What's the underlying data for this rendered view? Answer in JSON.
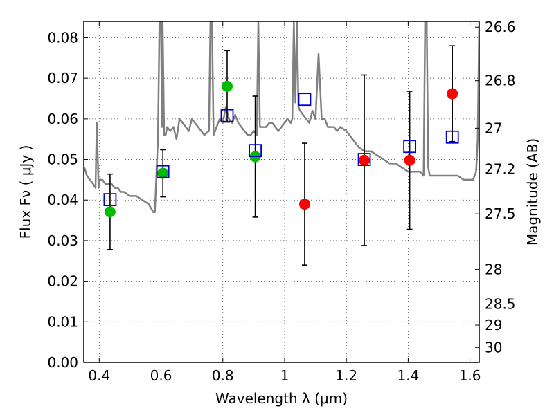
{
  "chart_data": {
    "type": "scatter",
    "title": "",
    "xlabel": "Wavelength  λ (μm)",
    "ylabel": "Flux  Fν  ( μJy )",
    "ylabel_right": "Magnitude (AB)",
    "xlim": [
      0.35,
      1.63
    ],
    "ylim": [
      0.0,
      0.084
    ],
    "grid": true,
    "x_ticks": [
      0.4,
      0.6,
      0.8,
      1.0,
      1.2,
      1.4,
      1.6
    ],
    "x_tick_labels": [
      "0.4",
      "0.6",
      "0.8",
      "1",
      "1.2",
      "1.4",
      "1.6"
    ],
    "y_ticks": [
      0.0,
      0.01,
      0.02,
      0.03,
      0.04,
      0.05,
      0.06,
      0.07,
      0.08
    ],
    "y_tick_labels": [
      "0.00",
      "0.01",
      "0.02",
      "0.03",
      "0.04",
      "0.05",
      "0.06",
      "0.07",
      "0.08"
    ],
    "right_axis_ticks": [
      {
        "flux": 0.0826,
        "label": "26.6"
      },
      {
        "flux": 0.0694,
        "label": "26.8"
      },
      {
        "flux": 0.0577,
        "label": "27"
      },
      {
        "flux": 0.0476,
        "label": "27.2"
      },
      {
        "flux": 0.0366,
        "label": "27.5"
      },
      {
        "flux": 0.0229,
        "label": "28"
      },
      {
        "flux": 0.0144,
        "label": "28.5"
      },
      {
        "flux": 0.0092,
        "label": "29"
      },
      {
        "flux": 0.0037,
        "label": "30"
      }
    ],
    "colors": {
      "green": "#00bb00",
      "red": "#ff0000",
      "blue": "#0000cc",
      "sed": "#808080",
      "errorbar": "#000000"
    },
    "series": [
      {
        "marker": "circle-green",
        "points": [
          {
            "x": 0.435,
            "y": 0.0371,
            "err": 0.0093
          },
          {
            "x": 0.606,
            "y": 0.0466,
            "err": 0.0058
          },
          {
            "x": 0.814,
            "y": 0.068,
            "err": 0.0088
          },
          {
            "x": 0.905,
            "y": 0.0507,
            "err": 0.0149
          }
        ]
      },
      {
        "marker": "circle-red",
        "points": [
          {
            "x": 1.065,
            "y": 0.039,
            "err": 0.015
          },
          {
            "x": 1.258,
            "y": 0.0498,
            "err": 0.021
          },
          {
            "x": 1.405,
            "y": 0.0498,
            "err": 0.017
          },
          {
            "x": 1.543,
            "y": 0.0662,
            "err": 0.0118
          }
        ]
      },
      {
        "marker": "square-blue",
        "points": [
          {
            "x": 0.435,
            "y": 0.0401
          },
          {
            "x": 0.606,
            "y": 0.047
          },
          {
            "x": 0.814,
            "y": 0.0608
          },
          {
            "x": 0.905,
            "y": 0.0522
          },
          {
            "x": 1.065,
            "y": 0.0648
          },
          {
            "x": 1.258,
            "y": 0.05
          },
          {
            "x": 1.405,
            "y": 0.0532
          },
          {
            "x": 1.543,
            "y": 0.0555
          }
        ]
      }
    ],
    "sed_curve": {
      "x": [
        0.352,
        0.36,
        0.37,
        0.38,
        0.388,
        0.392,
        0.398,
        0.402,
        0.41,
        0.42,
        0.43,
        0.44,
        0.45,
        0.46,
        0.47,
        0.48,
        0.5,
        0.52,
        0.54,
        0.56,
        0.575,
        0.58,
        0.585,
        0.59,
        0.595,
        0.6,
        0.603,
        0.605,
        0.61,
        0.615,
        0.62,
        0.63,
        0.64,
        0.65,
        0.66,
        0.67,
        0.68,
        0.69,
        0.7,
        0.72,
        0.74,
        0.755,
        0.76,
        0.765,
        0.77,
        0.78,
        0.79,
        0.8,
        0.81,
        0.82,
        0.83,
        0.84,
        0.85,
        0.86,
        0.87,
        0.88,
        0.89,
        0.9,
        0.91,
        0.915,
        0.92,
        0.925,
        0.93,
        0.94,
        0.95,
        0.96,
        0.97,
        0.98,
        0.99,
        1.0,
        1.01,
        1.02,
        1.025,
        1.03,
        1.035,
        1.04,
        1.045,
        1.05,
        1.06,
        1.07,
        1.08,
        1.09,
        1.1,
        1.11,
        1.12,
        1.13,
        1.14,
        1.15,
        1.16,
        1.17,
        1.18,
        1.2,
        1.22,
        1.24,
        1.26,
        1.28,
        1.3,
        1.32,
        1.34,
        1.36,
        1.38,
        1.4,
        1.42,
        1.44,
        1.45,
        1.455,
        1.46,
        1.465,
        1.47,
        1.48,
        1.5,
        1.52,
        1.54,
        1.56,
        1.58,
        1.6,
        1.61,
        1.62,
        1.625,
        1.63
      ],
      "y": [
        0.048,
        0.046,
        0.045,
        0.044,
        0.043,
        0.059,
        0.043,
        0.045,
        0.045,
        0.044,
        0.044,
        0.044,
        0.043,
        0.043,
        0.042,
        0.042,
        0.041,
        0.041,
        0.04,
        0.039,
        0.037,
        0.037,
        0.046,
        0.055,
        0.084,
        0.084,
        0.058,
        0.084,
        0.056,
        0.056,
        0.058,
        0.057,
        0.058,
        0.055,
        0.06,
        0.059,
        0.058,
        0.057,
        0.06,
        0.058,
        0.056,
        0.057,
        0.084,
        0.084,
        0.056,
        0.058,
        0.06,
        0.059,
        0.063,
        0.06,
        0.059,
        0.061,
        0.059,
        0.058,
        0.057,
        0.056,
        0.056,
        0.057,
        0.056,
        0.084,
        0.058,
        0.058,
        0.058,
        0.058,
        0.059,
        0.059,
        0.058,
        0.057,
        0.058,
        0.059,
        0.06,
        0.059,
        0.06,
        0.084,
        0.064,
        0.084,
        0.063,
        0.062,
        0.061,
        0.06,
        0.059,
        0.062,
        0.06,
        0.076,
        0.06,
        0.06,
        0.058,
        0.058,
        0.058,
        0.057,
        0.058,
        0.057,
        0.055,
        0.053,
        0.052,
        0.052,
        0.051,
        0.05,
        0.049,
        0.049,
        0.048,
        0.047,
        0.047,
        0.047,
        0.046,
        0.084,
        0.084,
        0.048,
        0.046,
        0.046,
        0.046,
        0.046,
        0.046,
        0.046,
        0.045,
        0.045,
        0.045,
        0.047,
        0.055,
        0.084
      ]
    }
  }
}
